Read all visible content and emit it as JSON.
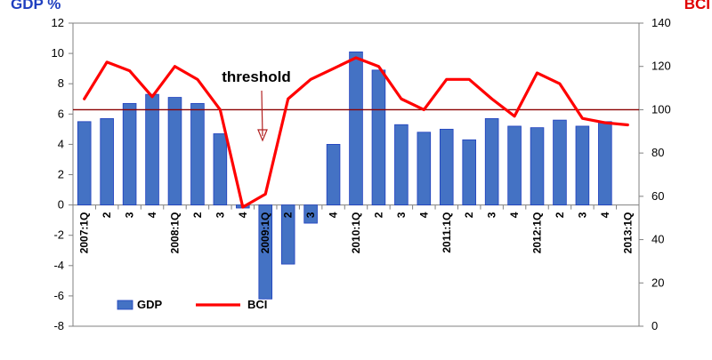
{
  "chart_data": {
    "type": "bar",
    "categories": [
      "2007:1Q",
      "2",
      "3",
      "4",
      "2008:1Q",
      "2",
      "3",
      "4",
      "2009:1Q",
      "2",
      "3",
      "4",
      "2010:1Q",
      "2",
      "3",
      "4",
      "2011:1Q",
      "2",
      "3",
      "4",
      "2012:1Q",
      "2",
      "3",
      "4",
      "2013:1Q"
    ],
    "series": [
      {
        "name": "GDP",
        "type": "bar",
        "axis": "left",
        "values": [
          5.5,
          5.7,
          6.7,
          7.3,
          7.1,
          6.7,
          4.7,
          -0.2,
          -6.2,
          -3.9,
          -1.2,
          4.0,
          10.1,
          8.9,
          5.3,
          4.8,
          5.0,
          4.3,
          5.7,
          5.2,
          5.1,
          5.6,
          5.2,
          5.5,
          null
        ],
        "color": "#4472C4"
      },
      {
        "name": "BCI",
        "type": "line",
        "axis": "right",
        "values": [
          105,
          122,
          118,
          106,
          120,
          114,
          100,
          55,
          61,
          105,
          114,
          119,
          124,
          120,
          105,
          100,
          114,
          114,
          105,
          97,
          117,
          112,
          96,
          94,
          93
        ],
        "color": "#FF0000"
      }
    ],
    "ylabel_left": "GDP %",
    "ylabel_right": "BCI",
    "ylim_left": [
      -8,
      12
    ],
    "ylim_right": [
      0,
      140
    ],
    "yticks_left": [
      -8,
      -6,
      -4,
      -2,
      0,
      2,
      4,
      6,
      8,
      10,
      12
    ],
    "yticks_right": [
      0,
      20,
      40,
      60,
      80,
      100,
      120,
      140
    ],
    "reference_line": {
      "axis": "right",
      "value": 100,
      "color": "#8B0000"
    },
    "annotation": {
      "text": "threshold",
      "arrow_at_category_index": 8
    },
    "legend": {
      "placement": "bottom-left",
      "items": [
        {
          "label": "GDP",
          "marker": "bar"
        },
        {
          "label": "BCI",
          "marker": "line"
        }
      ]
    },
    "grid": false,
    "colors": {
      "left_title": "#1F3FBF",
      "right_title": "#E00000",
      "bar_stroke": "#1F3FBF"
    }
  }
}
